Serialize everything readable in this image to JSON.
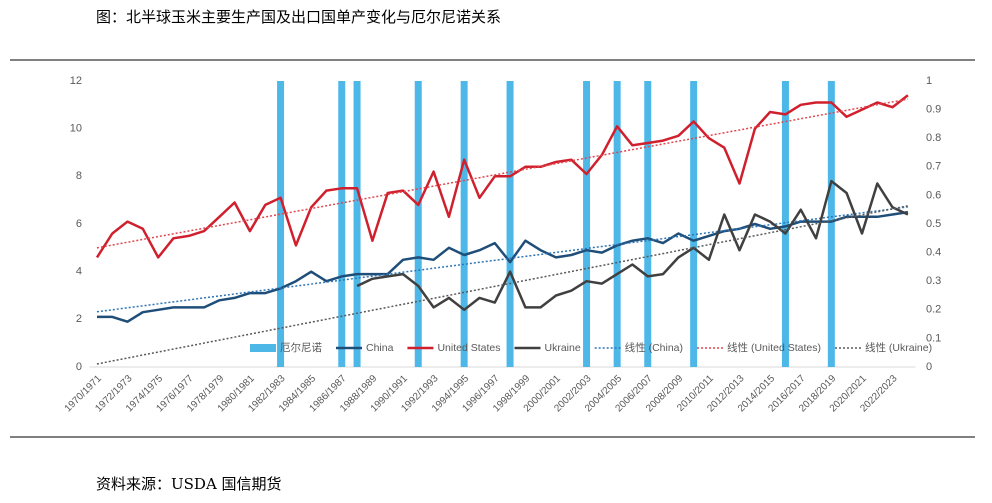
{
  "title": "图：北半球玉米主要生产国及出口国单产变化与厄尔尼诺关系",
  "source": "资料来源：USDA 国信期货",
  "chart_data": {
    "type": "combo",
    "categories": [
      "1970/1971",
      null,
      "1972/1973",
      null,
      "1974/1975",
      null,
      "1976/1977",
      null,
      "1978/1979",
      null,
      "1980/1981",
      null,
      "1982/1983",
      null,
      "1984/1985",
      null,
      "1986/1987",
      null,
      "1988/1989",
      null,
      "1990/1991",
      null,
      "1992/1993",
      null,
      "1994/1995",
      null,
      "1996/1997",
      null,
      "1998/1999",
      null,
      "2000/2001",
      null,
      "2002/2003",
      null,
      "2004/2005",
      null,
      "2006/2007",
      null,
      "2008/2009",
      null,
      "2010/2011",
      null,
      "2012/2013",
      null,
      "2014/2015",
      null,
      "2016/2017",
      null,
      "2018/2019",
      null,
      "2020/2021",
      null,
      "2022/2023",
      null
    ],
    "series": [
      {
        "name": "厄尔尼诺",
        "kind": "bar",
        "axis": "y2",
        "color": "#4db8e8",
        "values": [
          0,
          0,
          0,
          0,
          0,
          0,
          0,
          0,
          0,
          0,
          0,
          0,
          1,
          0,
          0,
          0,
          1,
          1,
          0,
          0,
          0,
          1,
          0,
          0,
          1,
          0,
          0,
          1,
          0,
          0,
          0,
          0,
          1,
          0,
          1,
          0,
          1,
          0,
          0,
          1,
          0,
          0,
          0,
          0,
          0,
          1,
          0,
          0,
          1,
          0,
          0,
          0,
          0,
          0
        ]
      },
      {
        "name": "China",
        "kind": "line",
        "color": "#1f4e79",
        "trendline": {
          "name": "线性 (China)",
          "color": "#2e75b6"
        },
        "values": [
          2.1,
          2.1,
          1.9,
          2.3,
          2.4,
          2.5,
          2.5,
          2.5,
          2.8,
          2.9,
          3.1,
          3.1,
          3.3,
          3.6,
          4.0,
          3.6,
          3.8,
          3.9,
          3.9,
          3.9,
          4.5,
          4.6,
          4.5,
          5.0,
          4.7,
          4.9,
          5.2,
          4.4,
          5.3,
          4.9,
          4.6,
          4.7,
          4.9,
          4.8,
          5.1,
          5.3,
          5.4,
          5.2,
          5.6,
          5.3,
          5.5,
          5.7,
          5.8,
          6.0,
          5.8,
          5.9,
          6.1,
          6.1,
          6.1,
          6.3,
          6.3,
          6.3,
          6.4,
          6.5
        ]
      },
      {
        "name": "United States",
        "kind": "line",
        "color": "#d0202e",
        "trendline": {
          "name": "线性 (United States)",
          "color": "#e0474f"
        },
        "values": [
          4.6,
          5.6,
          6.1,
          5.8,
          4.6,
          5.4,
          5.5,
          5.7,
          6.3,
          6.9,
          5.7,
          6.8,
          7.1,
          5.1,
          6.7,
          7.4,
          7.5,
          7.5,
          5.3,
          7.3,
          7.4,
          6.8,
          8.2,
          6.3,
          8.7,
          7.1,
          8.0,
          8.0,
          8.4,
          8.4,
          8.6,
          8.7,
          8.1,
          8.9,
          10.1,
          9.3,
          9.4,
          9.5,
          9.7,
          10.3,
          9.6,
          9.2,
          7.7,
          10.0,
          10.7,
          10.6,
          11.0,
          11.1,
          11.1,
          10.5,
          10.8,
          11.1,
          10.9,
          11.4
        ]
      },
      {
        "name": "Ukraine",
        "kind": "line",
        "color": "#404040",
        "trendline": {
          "name": "线性 (Ukraine)",
          "color": "#595959"
        },
        "values": [
          null,
          null,
          null,
          null,
          null,
          null,
          null,
          null,
          null,
          null,
          null,
          null,
          null,
          null,
          null,
          null,
          null,
          3.4,
          3.7,
          3.8,
          3.9,
          3.4,
          2.5,
          2.9,
          2.4,
          2.9,
          2.7,
          4.0,
          2.5,
          2.5,
          3.0,
          3.2,
          3.6,
          3.5,
          3.9,
          4.3,
          3.8,
          3.9,
          4.6,
          5.0,
          4.5,
          6.4,
          4.9,
          6.4,
          6.1,
          5.6,
          6.6,
          5.4,
          7.8,
          7.3,
          5.6,
          7.7,
          6.7,
          6.4
        ]
      }
    ],
    "ylim": [
      0,
      12
    ],
    "yticks": [
      0,
      2,
      4,
      6,
      8,
      10,
      12
    ],
    "y2lim": [
      0,
      1
    ],
    "y2ticks": [
      0,
      0.1,
      0.2,
      0.3,
      0.4,
      0.5,
      0.6,
      0.7,
      0.8,
      0.9,
      1
    ],
    "legend": "bottom"
  }
}
